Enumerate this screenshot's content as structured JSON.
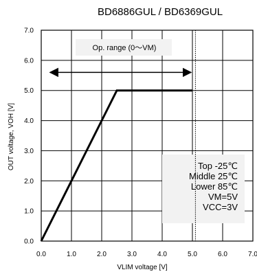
{
  "chart_data": {
    "type": "line",
    "title": "BD6886GUL / BD6369GUL",
    "xlabel": "VLIM voltage [V]",
    "ylabel": "OUT voltage, VOH [V]",
    "xlim": [
      0,
      7
    ],
    "ylim": [
      0,
      7
    ],
    "x_ticks": [
      "0.0",
      "1.0",
      "2.0",
      "3.0",
      "4.0",
      "5.0",
      "6.0",
      "7.0"
    ],
    "y_ticks": [
      "0.0",
      "1.0",
      "2.0",
      "3.0",
      "4.0",
      "5.0",
      "6.0",
      "7.0"
    ],
    "grid": true,
    "series": [
      {
        "values": [
          [
            0,
            0
          ],
          [
            2.5,
            5.0
          ],
          [
            5.0,
            5.0
          ]
        ],
        "color": "#000000"
      }
    ],
    "operating_range": {
      "label": "Op. range (0〜VM)",
      "x_start": 0.2,
      "x_end": 5.0,
      "y": 5.6,
      "limit_x": 5.1
    },
    "conditions": [
      "Top -25℃",
      "Middle 25℃",
      "Lower 85℃",
      "VM=5V",
      "VCC=3V"
    ],
    "conditions_position": "bottom-right"
  }
}
